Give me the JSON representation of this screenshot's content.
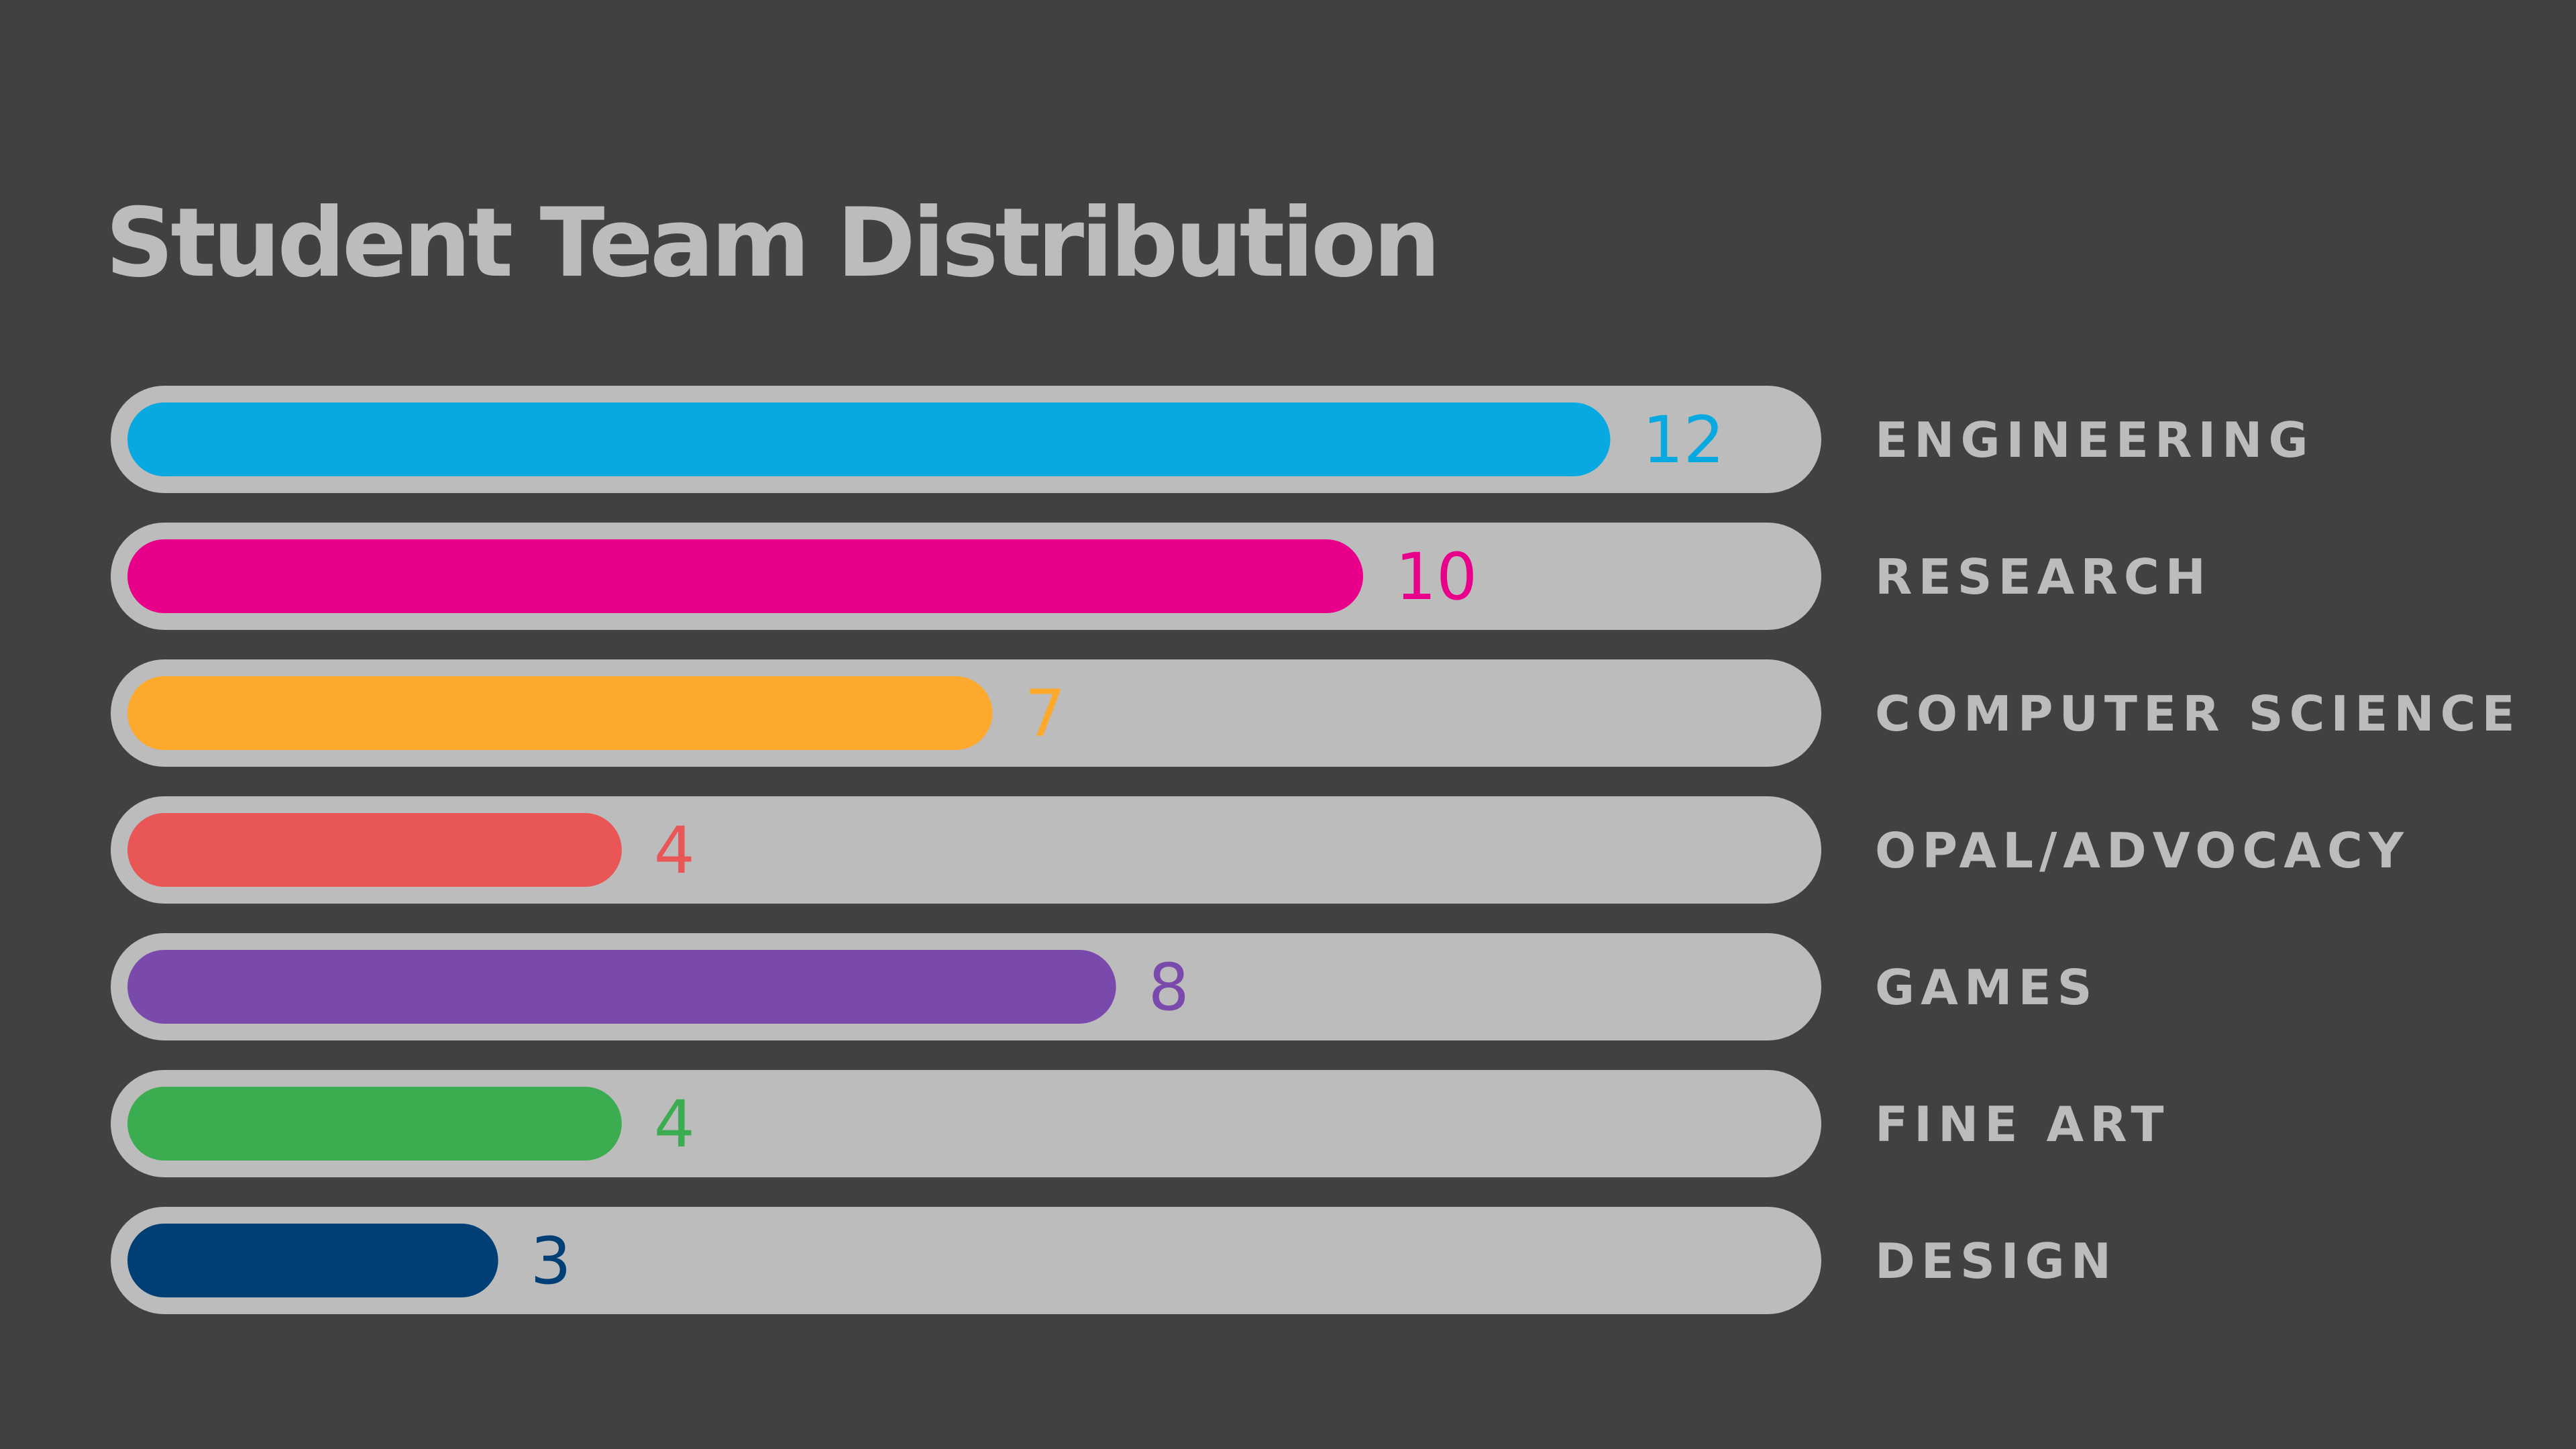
{
  "chart_data": {
    "type": "bar",
    "orientation": "horizontal",
    "title": "Student Team Distribution",
    "categories": [
      "ENGINEERING",
      "RESEARCH",
      "COMPUTER SCIENCE",
      "OPAL/ADVOCACY",
      "GAMES",
      "FINE ART",
      "DESIGN"
    ],
    "values": [
      12,
      10,
      7,
      4,
      8,
      4,
      3
    ],
    "colors": [
      "#08a8e1",
      "#e9008a",
      "#fca92d",
      "#e85656",
      "#7a49ac",
      "#3bac4f",
      "#003f75"
    ],
    "xlim": [
      0,
      14
    ],
    "track_color": "#bcbcbc",
    "category_label_color": "#bcbcbc",
    "grid": false,
    "legend": "none"
  }
}
